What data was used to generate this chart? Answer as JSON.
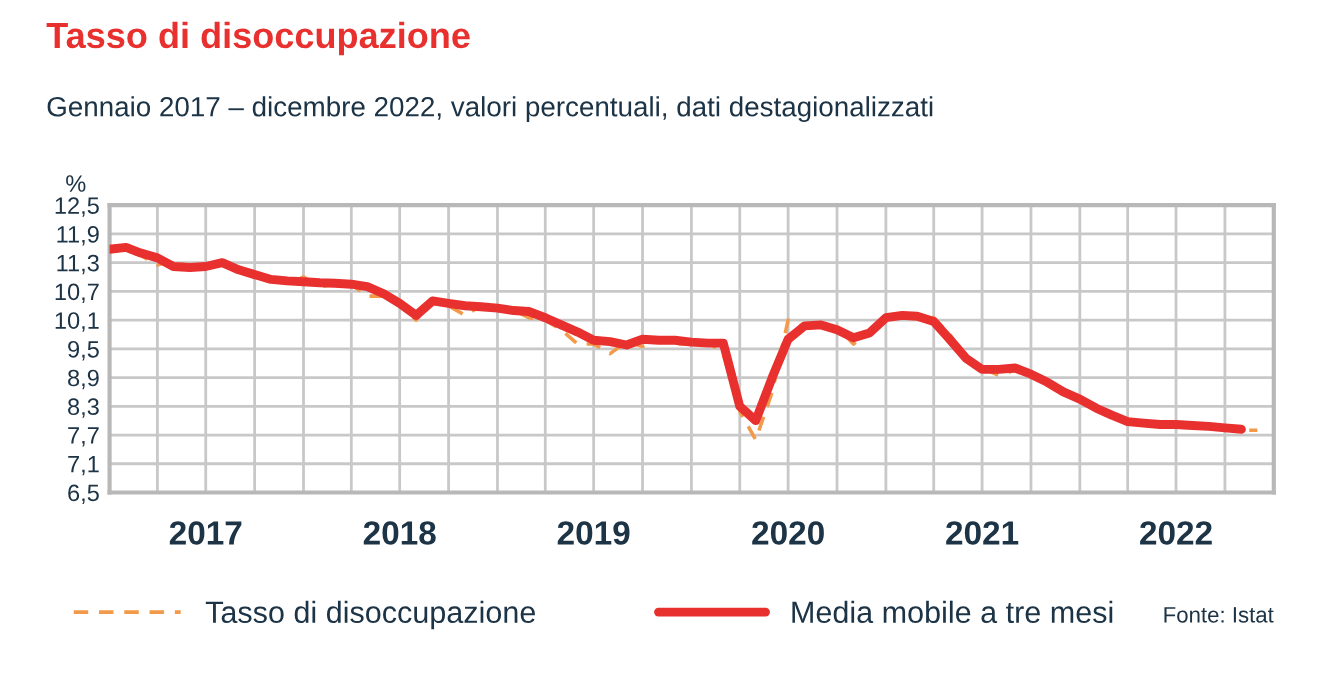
{
  "chart_data": {
    "type": "line",
    "title": "Tasso di disoccupazione",
    "subtitle": "Gennaio 2017 – dicembre 2022, valori percentuali, dati destagionalizzati",
    "ylabel": "%",
    "annotations": [
      "Fonte: Istat"
    ],
    "x": [
      "2017-01",
      "2017-02",
      "2017-03",
      "2017-04",
      "2017-05",
      "2017-06",
      "2017-07",
      "2017-08",
      "2017-09",
      "2017-10",
      "2017-11",
      "2017-12",
      "2018-01",
      "2018-02",
      "2018-03",
      "2018-04",
      "2018-05",
      "2018-06",
      "2018-07",
      "2018-08",
      "2018-09",
      "2018-10",
      "2018-11",
      "2018-12",
      "2019-01",
      "2019-02",
      "2019-03",
      "2019-04",
      "2019-05",
      "2019-06",
      "2019-07",
      "2019-08",
      "2019-09",
      "2019-10",
      "2019-11",
      "2019-12",
      "2020-01",
      "2020-02",
      "2020-03",
      "2020-04",
      "2020-05",
      "2020-06",
      "2020-07",
      "2020-08",
      "2020-09",
      "2020-10",
      "2020-11",
      "2020-12",
      "2021-01",
      "2021-02",
      "2021-03",
      "2021-04",
      "2021-05",
      "2021-06",
      "2021-07",
      "2021-08",
      "2021-09",
      "2021-10",
      "2021-11",
      "2021-12",
      "2022-01",
      "2022-02",
      "2022-03",
      "2022-04",
      "2022-05",
      "2022-06",
      "2022-07",
      "2022-08",
      "2022-09",
      "2022-10",
      "2022-11",
      "2022-12"
    ],
    "series": [
      {
        "name": "Tasso di disoccupazione",
        "color": "#f39a4a",
        "line_style": "dashed",
        "values": [
          11.6,
          11.55,
          11.45,
          11.25,
          11.35,
          11.2,
          11.2,
          11.3,
          11.1,
          11.05,
          10.9,
          10.9,
          11.0,
          10.8,
          10.85,
          10.85,
          10.6,
          10.6,
          10.4,
          10.1,
          10.55,
          10.4,
          10.2,
          10.4,
          10.35,
          10.3,
          10.15,
          10.1,
          9.9,
          9.6,
          9.6,
          9.4,
          9.65,
          9.55,
          9.7,
          9.6,
          9.6,
          9.65,
          9.4,
          8.2,
          7.6,
          8.6,
          10.1,
          9.95,
          10.0,
          9.95,
          9.6,
          9.85,
          10.2,
          10.2,
          10.2,
          10.15,
          9.8,
          9.3,
          9.1,
          8.95,
          9.05,
          8.95,
          8.8,
          8.6,
          8.45,
          8.25,
          8.1,
          8.0,
          7.95,
          7.92,
          7.92,
          7.9,
          7.88,
          7.85,
          7.8,
          7.8
        ]
      },
      {
        "name": "Media mobile a tre mesi",
        "color": "#e8302f",
        "line_style": "solid",
        "values": [
          11.58,
          11.62,
          11.5,
          11.4,
          11.22,
          11.2,
          11.22,
          11.3,
          11.15,
          11.05,
          10.95,
          10.92,
          10.9,
          10.88,
          10.87,
          10.85,
          10.8,
          10.65,
          10.45,
          10.2,
          10.5,
          10.45,
          10.4,
          10.38,
          10.35,
          10.3,
          10.28,
          10.15,
          10.0,
          9.85,
          9.68,
          9.65,
          9.58,
          9.7,
          9.68,
          9.68,
          9.64,
          9.62,
          9.62,
          8.3,
          8.0,
          8.9,
          9.7,
          9.98,
          10.0,
          9.9,
          9.73,
          9.83,
          10.15,
          10.2,
          10.18,
          10.07,
          9.7,
          9.3,
          9.07,
          9.07,
          9.1,
          8.97,
          8.8,
          8.6,
          8.45,
          8.26,
          8.12,
          7.98,
          7.95,
          7.92,
          7.92,
          7.9,
          7.88,
          7.85,
          7.82,
          null
        ]
      }
    ],
    "xlim": [
      "2017-01",
      "2023-01"
    ],
    "xticks": [
      {
        "value": "2017-01",
        "label": null
      },
      {
        "value": "2017-04",
        "label": null
      },
      {
        "value": "2017-07",
        "label": "2017"
      },
      {
        "value": "2017-10",
        "label": null
      },
      {
        "value": "2018-01",
        "label": null
      },
      {
        "value": "2018-04",
        "label": null
      },
      {
        "value": "2018-07",
        "label": "2018"
      },
      {
        "value": "2018-10",
        "label": null
      },
      {
        "value": "2019-01",
        "label": null
      },
      {
        "value": "2019-04",
        "label": null
      },
      {
        "value": "2019-07",
        "label": "2019"
      },
      {
        "value": "2019-10",
        "label": null
      },
      {
        "value": "2020-01",
        "label": null
      },
      {
        "value": "2020-04",
        "label": null
      },
      {
        "value": "2020-07",
        "label": "2020"
      },
      {
        "value": "2020-10",
        "label": null
      },
      {
        "value": "2021-01",
        "label": null
      },
      {
        "value": "2021-04",
        "label": null
      },
      {
        "value": "2021-07",
        "label": "2021"
      },
      {
        "value": "2021-10",
        "label": null
      },
      {
        "value": "2022-01",
        "label": null
      },
      {
        "value": "2022-04",
        "label": null
      },
      {
        "value": "2022-07",
        "label": "2022"
      },
      {
        "value": "2022-10",
        "label": null
      },
      {
        "value": "2023-01",
        "label": null
      }
    ],
    "ylim": [
      6.5,
      12.5
    ],
    "yticks": [
      {
        "value": 6.5,
        "label": "6,5"
      },
      {
        "value": 7.1,
        "label": "7,1"
      },
      {
        "value": 7.7,
        "label": "7,7"
      },
      {
        "value": 8.3,
        "label": "8,3"
      },
      {
        "value": 8.9,
        "label": "8,9"
      },
      {
        "value": 9.5,
        "label": "9,5"
      },
      {
        "value": 10.1,
        "label": "10,1"
      },
      {
        "value": 10.7,
        "label": "10,7"
      },
      {
        "value": 11.3,
        "label": "11,3"
      },
      {
        "value": 11.9,
        "label": "11,9"
      },
      {
        "value": 12.5,
        "label": "12,5"
      }
    ],
    "grid": true,
    "legend": "bottom",
    "marker": "none"
  }
}
